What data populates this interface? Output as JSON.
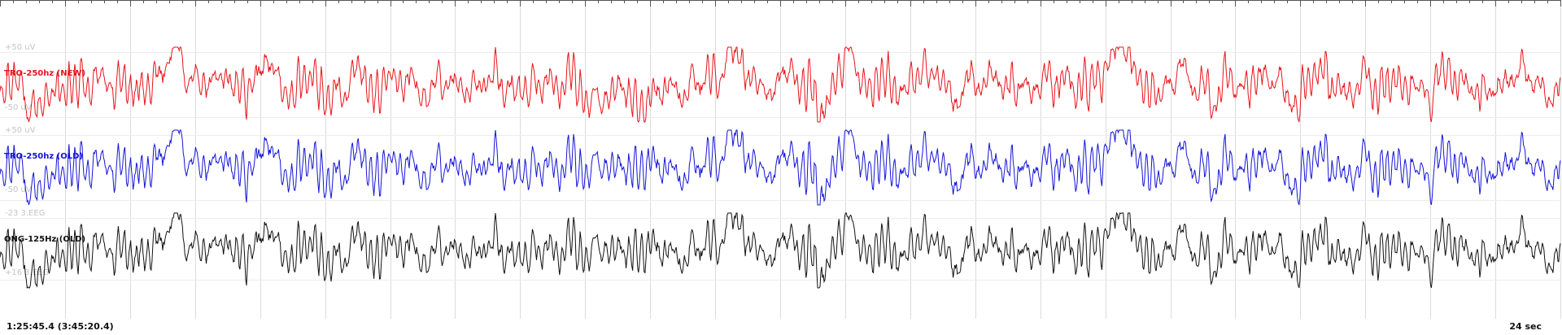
{
  "chart_data": {
    "type": "line",
    "title": "",
    "xlabel": "",
    "ylabel": "",
    "grid": true,
    "series": [
      {
        "name": "TRO-250hz (NEW)",
        "color": "#e8141b",
        "scale_top": "+50 uV",
        "scale_bottom": "-50 uV",
        "seed": 11,
        "events": [
          [
            0.5,
            -0.7
          ],
          [
            2.7,
            0.9
          ],
          [
            4.2,
            0.8
          ],
          [
            4.35,
            -0.6
          ],
          [
            9.2,
            -0.5
          ],
          [
            9.9,
            -0.6
          ],
          [
            11.2,
            0.7
          ],
          [
            12.8,
            -0.9
          ],
          [
            13.0,
            1.1
          ],
          [
            17.2,
            1.0
          ]
        ]
      },
      {
        "name": "TRO-250hz (OLD)",
        "color": "#1414d8",
        "scale_top": "+50 uV",
        "scale_bottom": "-50 uV",
        "seed": 11,
        "events": [
          [
            0.5,
            -0.7
          ],
          [
            2.7,
            0.9
          ],
          [
            4.2,
            0.8
          ],
          [
            4.35,
            -0.6
          ],
          [
            11.2,
            0.7
          ],
          [
            12.8,
            -0.9
          ],
          [
            13.0,
            1.1
          ],
          [
            17.2,
            1.0
          ]
        ]
      },
      {
        "name": "ONG-125Hz (OLD)",
        "color": "#111111",
        "scale_top": "-23 3.EEG",
        "scale_bottom": "+16 3.EEG",
        "seed": 11,
        "events": [
          [
            0.5,
            -0.8
          ],
          [
            2.7,
            0.8
          ],
          [
            4.2,
            0.7
          ],
          [
            4.35,
            -0.5
          ],
          [
            11.2,
            0.7
          ],
          [
            12.8,
            -0.8
          ],
          [
            13.0,
            1.0
          ],
          [
            17.2,
            0.9
          ]
        ]
      }
    ]
  },
  "footer": {
    "time_label": "1:25:45.4 (3:45:20.4)",
    "duration_label": "24 sec"
  }
}
